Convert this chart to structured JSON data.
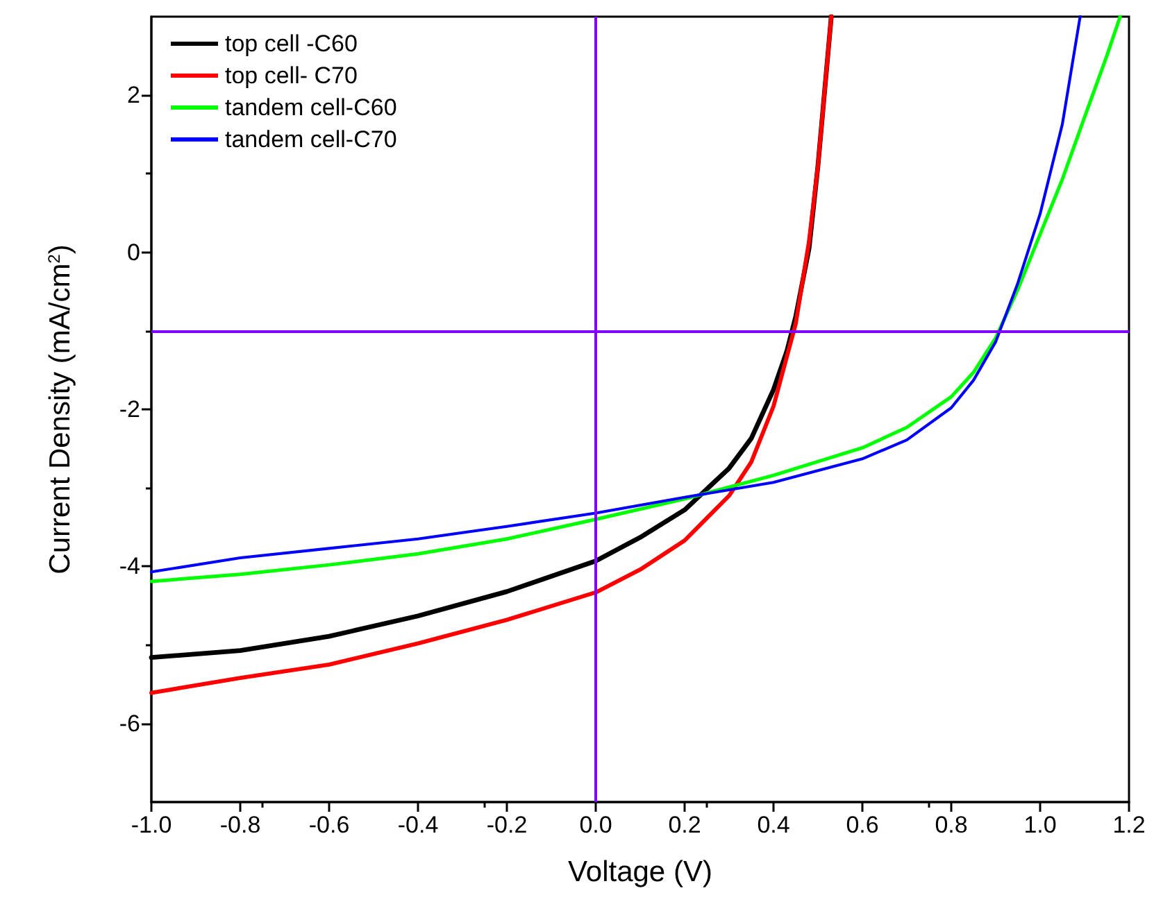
{
  "chart_data": {
    "type": "line",
    "xlabel": "Voltage (V)",
    "ylabel": "Current Density (mA/cm$^{2}$)",
    "xlim": [
      -1.0,
      1.2
    ],
    "ylim": [
      -7,
      3
    ],
    "xticks": [
      {
        "value": -1.0,
        "label": "-1.0"
      },
      {
        "value": -0.8,
        "label": "-0.8"
      },
      {
        "value": -0.6,
        "label": "-0.6"
      },
      {
        "value": -0.4,
        "label": "-0.4"
      },
      {
        "value": -0.2,
        "label": "-0.2"
      },
      {
        "value": 0,
        "label": "0.0"
      },
      {
        "value": 0.2,
        "label": "0.2"
      },
      {
        "value": 0.4,
        "label": "0.4"
      },
      {
        "value": 0.6,
        "label": "0.6"
      },
      {
        "value": 0.8,
        "label": "0.8"
      },
      {
        "value": 1.0,
        "label": "1.0"
      },
      {
        "value": 1.2,
        "label": "1.2"
      }
    ],
    "yticks": [
      -6,
      -4,
      -2,
      0,
      2
    ],
    "grid": false,
    "legend": "top left",
    "marker": "none",
    "line_style": "solid",
    "ref_lines": [
      {
        "axis": "x",
        "value": 0,
        "color": "#8000ff"
      },
      {
        "axis": "y",
        "value": -1,
        "color": "#8000ff"
      }
    ],
    "series": [
      {
        "name": "top cell -C60",
        "color": "#000000",
        "x": [
          -1,
          -0.8,
          -0.6,
          -0.4,
          -0.2,
          0,
          0.1,
          0.2,
          0.3,
          0.35,
          0.4,
          0.43,
          0.45,
          0.48,
          0.5,
          0.53
        ],
        "values": [
          -5.16,
          -5.07,
          -4.89,
          -4.63,
          -4.32,
          -3.93,
          -3.63,
          -3.28,
          -2.75,
          -2.37,
          -1.75,
          -1.26,
          -0.82,
          0.05,
          1.1,
          3
        ]
      },
      {
        "name": "top cell- C70",
        "color": "#ff0000",
        "x": [
          -1,
          -0.8,
          -0.6,
          -0.4,
          -0.2,
          0,
          0.1,
          0.2,
          0.3,
          0.35,
          0.4,
          0.45,
          0.48,
          0.5,
          0.53
        ],
        "values": [
          -5.61,
          -5.42,
          -5.25,
          -4.98,
          -4.68,
          -4.33,
          -4.04,
          -3.67,
          -3.1,
          -2.67,
          -1.96,
          -0.91,
          0.14,
          1.1,
          3
        ]
      },
      {
        "name": "tandem cell-C60",
        "color": "#00ff00",
        "x": [
          -1,
          -0.8,
          -0.6,
          -0.4,
          -0.2,
          0,
          0.2,
          0.4,
          0.6,
          0.7,
          0.8,
          0.85,
          0.9,
          0.95,
          1.0,
          1.05,
          1.1,
          1.15,
          1.18
        ],
        "values": [
          -4.19,
          -4.1,
          -3.98,
          -3.84,
          -3.65,
          -3.4,
          -3.14,
          -2.84,
          -2.49,
          -2.23,
          -1.84,
          -1.53,
          -1.09,
          -0.47,
          0.23,
          0.93,
          1.72,
          2.5,
          3
        ]
      },
      {
        "name": "tandem cell-C70",
        "color": "#0000ff",
        "x": [
          -1,
          -0.8,
          -0.6,
          -0.4,
          -0.2,
          0,
          0.2,
          0.4,
          0.6,
          0.7,
          0.8,
          0.85,
          0.9,
          0.95,
          1.0,
          1.05,
          1.09
        ],
        "values": [
          -4.07,
          -3.89,
          -3.77,
          -3.65,
          -3.49,
          -3.32,
          -3.12,
          -2.93,
          -2.63,
          -2.39,
          -1.98,
          -1.63,
          -1.14,
          -0.39,
          0.49,
          1.63,
          3
        ]
      }
    ]
  }
}
